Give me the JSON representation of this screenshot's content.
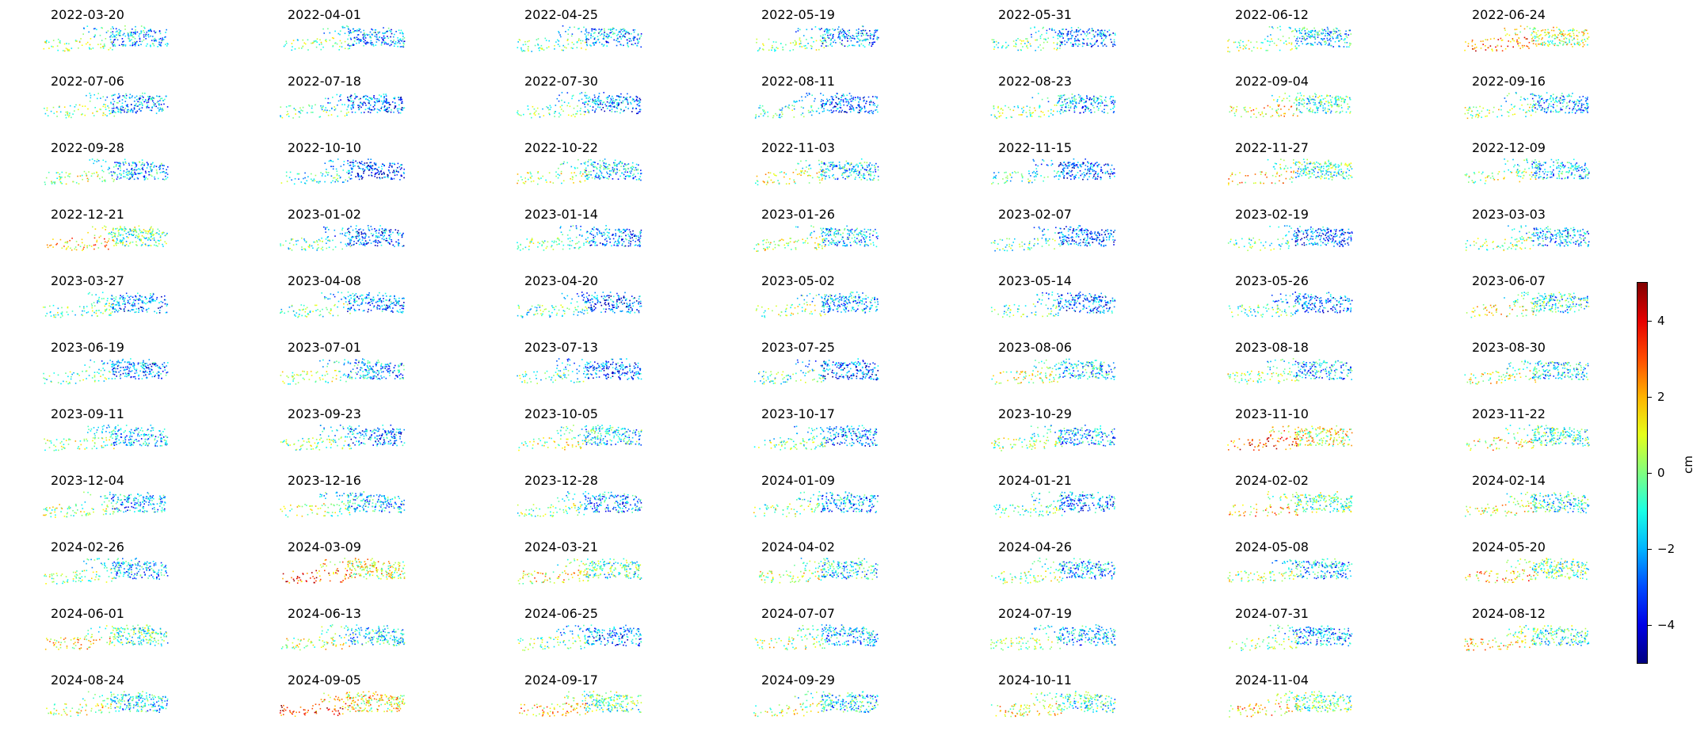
{
  "chart_data": {
    "type": "scatter",
    "title": "",
    "layout": "small-multiples",
    "panel_titles": [
      "2022-03-20",
      "2022-04-01",
      "2022-04-25",
      "2022-05-19",
      "2022-05-31",
      "2022-06-12",
      "2022-06-24",
      "2022-07-06",
      "2022-07-18",
      "2022-07-30",
      "2022-08-11",
      "2022-08-23",
      "2022-09-04",
      "2022-09-16",
      "2022-09-28",
      "2022-10-10",
      "2022-10-22",
      "2022-11-03",
      "2022-11-15",
      "2022-11-27",
      "2022-12-09",
      "2022-12-21",
      "2023-01-02",
      "2023-01-14",
      "2023-01-26",
      "2023-02-07",
      "2023-02-19",
      "2023-03-03",
      "2023-03-27",
      "2023-04-08",
      "2023-04-20",
      "2023-05-02",
      "2023-05-14",
      "2023-05-26",
      "2023-06-07",
      "2023-06-19",
      "2023-07-01",
      "2023-07-13",
      "2023-07-25",
      "2023-08-06",
      "2023-08-18",
      "2023-08-30",
      "2023-09-11",
      "2023-09-23",
      "2023-10-05",
      "2023-10-17",
      "2023-10-29",
      "2023-11-10",
      "2023-11-22",
      "2023-12-04",
      "2023-12-16",
      "2023-12-28",
      "2024-01-09",
      "2024-01-21",
      "2024-02-02",
      "2024-02-14",
      "2024-02-26",
      "2024-03-09",
      "2024-03-21",
      "2024-04-02",
      "2024-04-26",
      "2024-05-08",
      "2024-05-20",
      "2024-06-01",
      "2024-06-13",
      "2024-06-25",
      "2024-07-07",
      "2024-07-19",
      "2024-07-31",
      "2024-08-12",
      "2024-08-24",
      "2024-09-05",
      "2024-09-17",
      "2024-09-29",
      "2024-10-11",
      "2024-11-04"
    ],
    "panel_mean_cm": [
      -2.0,
      -2.2,
      -2.3,
      -2.4,
      -2.5,
      -1.8,
      0.5,
      -2.2,
      -2.8,
      -2.6,
      -3.0,
      -2.2,
      -0.8,
      -2.0,
      -1.8,
      -3.2,
      -1.8,
      -1.5,
      -3.0,
      -0.8,
      -1.8,
      -0.5,
      -2.8,
      -2.5,
      -1.8,
      -3.0,
      -2.8,
      -2.0,
      -2.5,
      -2.5,
      -3.0,
      -2.0,
      -2.8,
      -2.8,
      -1.2,
      -2.5,
      -2.2,
      -2.8,
      -3.0,
      -1.5,
      -2.0,
      -1.5,
      -2.0,
      -2.5,
      -1.5,
      -2.5,
      -2.0,
      1.0,
      -1.0,
      -2.0,
      -1.8,
      -2.2,
      -2.2,
      -2.5,
      -0.5,
      -1.2,
      -2.0,
      0.8,
      -0.8,
      -1.5,
      -2.0,
      -2.0,
      -0.5,
      -0.8,
      -1.5,
      -2.5,
      -1.8,
      -2.0,
      -2.2,
      -1.0,
      -1.5,
      1.2,
      -0.5,
      -1.5,
      -1.0,
      -0.5
    ],
    "colorbar": {
      "label": "cm",
      "colormap": "jet",
      "range": [
        -5,
        5
      ],
      "ticks": [
        4,
        2,
        0,
        -2,
        -4
      ],
      "tick_labels": [
        "4",
        "2",
        "0",
        "−2",
        "−4"
      ]
    },
    "axes_visible": false
  }
}
